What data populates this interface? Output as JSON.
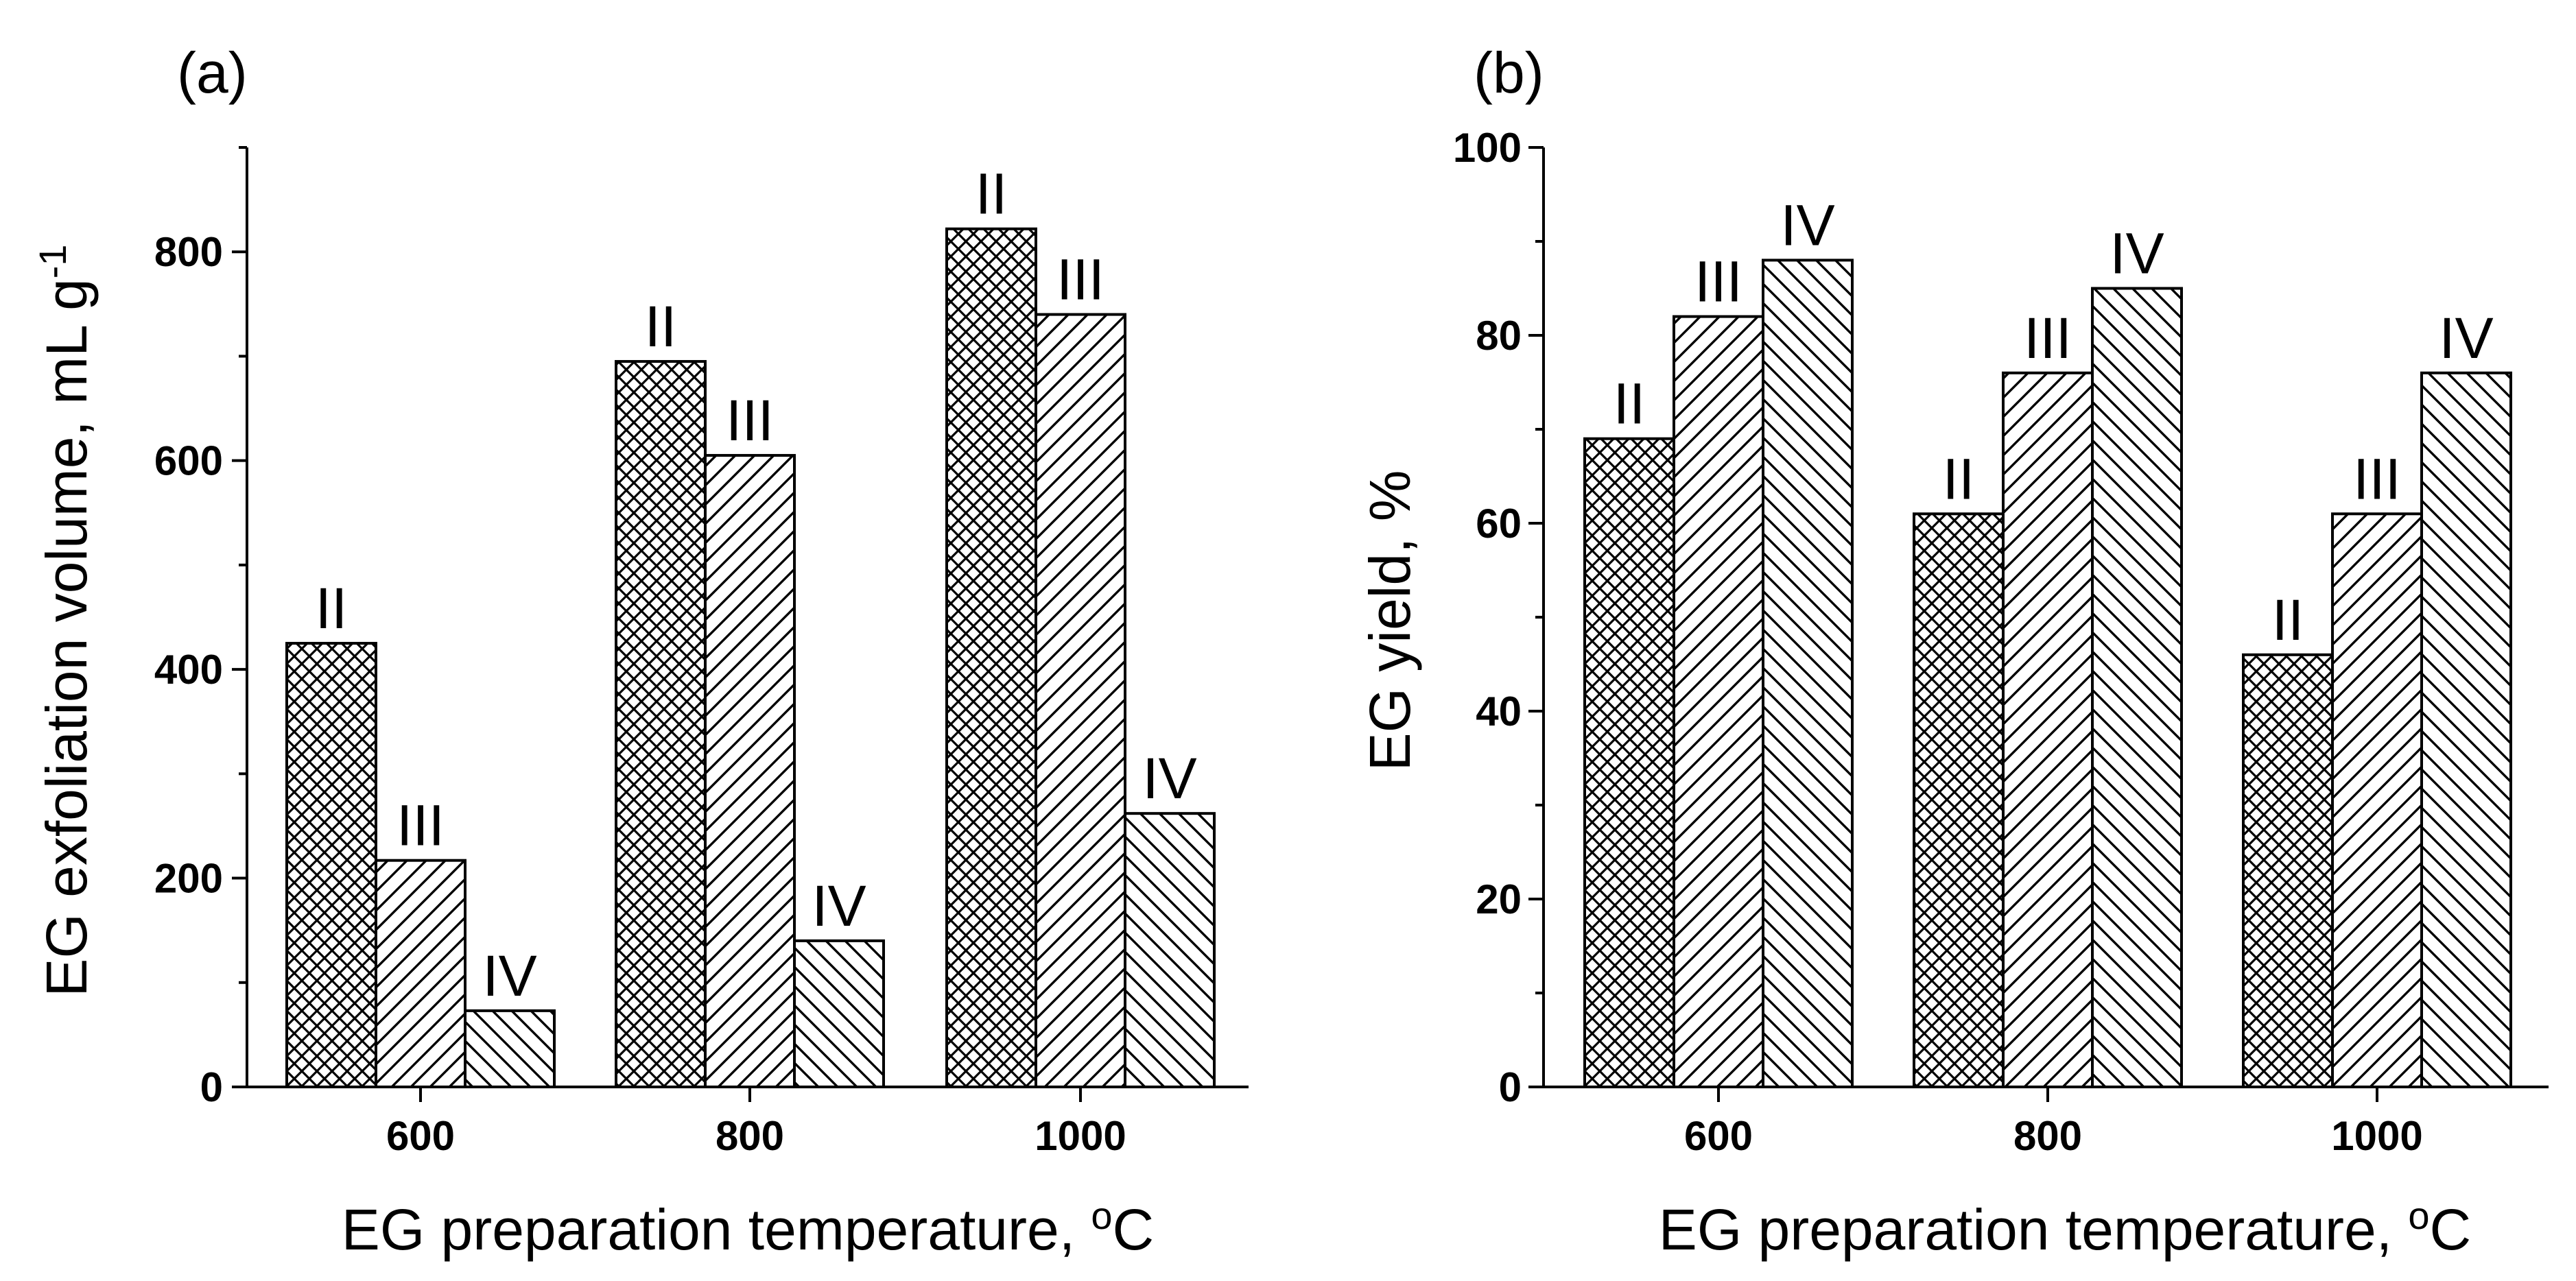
{
  "chart_data": [
    {
      "type": "bar",
      "panel_label": "(a)",
      "categories": [
        "600",
        "800",
        "1000"
      ],
      "series": [
        {
          "name": "II",
          "pattern": "crosshatch",
          "values": [
            425,
            695,
            822
          ]
        },
        {
          "name": "III",
          "pattern": "hatch-forward",
          "values": [
            217,
            605,
            740
          ]
        },
        {
          "name": "IV",
          "pattern": "hatch-backward",
          "values": [
            73,
            140,
            262
          ]
        }
      ],
      "xlabel": "EG preparation temperature, ",
      "xlabel_sup": "o",
      "xlabel_unit": "C",
      "ylabel": "EG exfoliation volume, mL g",
      "ylabel_sup": "-1",
      "ylim": [
        0,
        900
      ],
      "yticks": [
        0,
        200,
        400,
        600,
        800
      ]
    },
    {
      "type": "bar",
      "panel_label": "(b)",
      "categories": [
        "600",
        "800",
        "1000"
      ],
      "series": [
        {
          "name": "II",
          "pattern": "crosshatch",
          "values": [
            69,
            61,
            46
          ]
        },
        {
          "name": "III",
          "pattern": "hatch-forward",
          "values": [
            82,
            76,
            61
          ]
        },
        {
          "name": "IV",
          "pattern": "hatch-backward",
          "values": [
            88,
            85,
            76
          ]
        }
      ],
      "xlabel": "EG preparation temperature, ",
      "xlabel_sup": "o",
      "xlabel_unit": "C",
      "ylabel": "EG yield, %",
      "ylim": [
        0,
        100
      ],
      "yticks": [
        0,
        20,
        40,
        60,
        80,
        100
      ]
    }
  ]
}
